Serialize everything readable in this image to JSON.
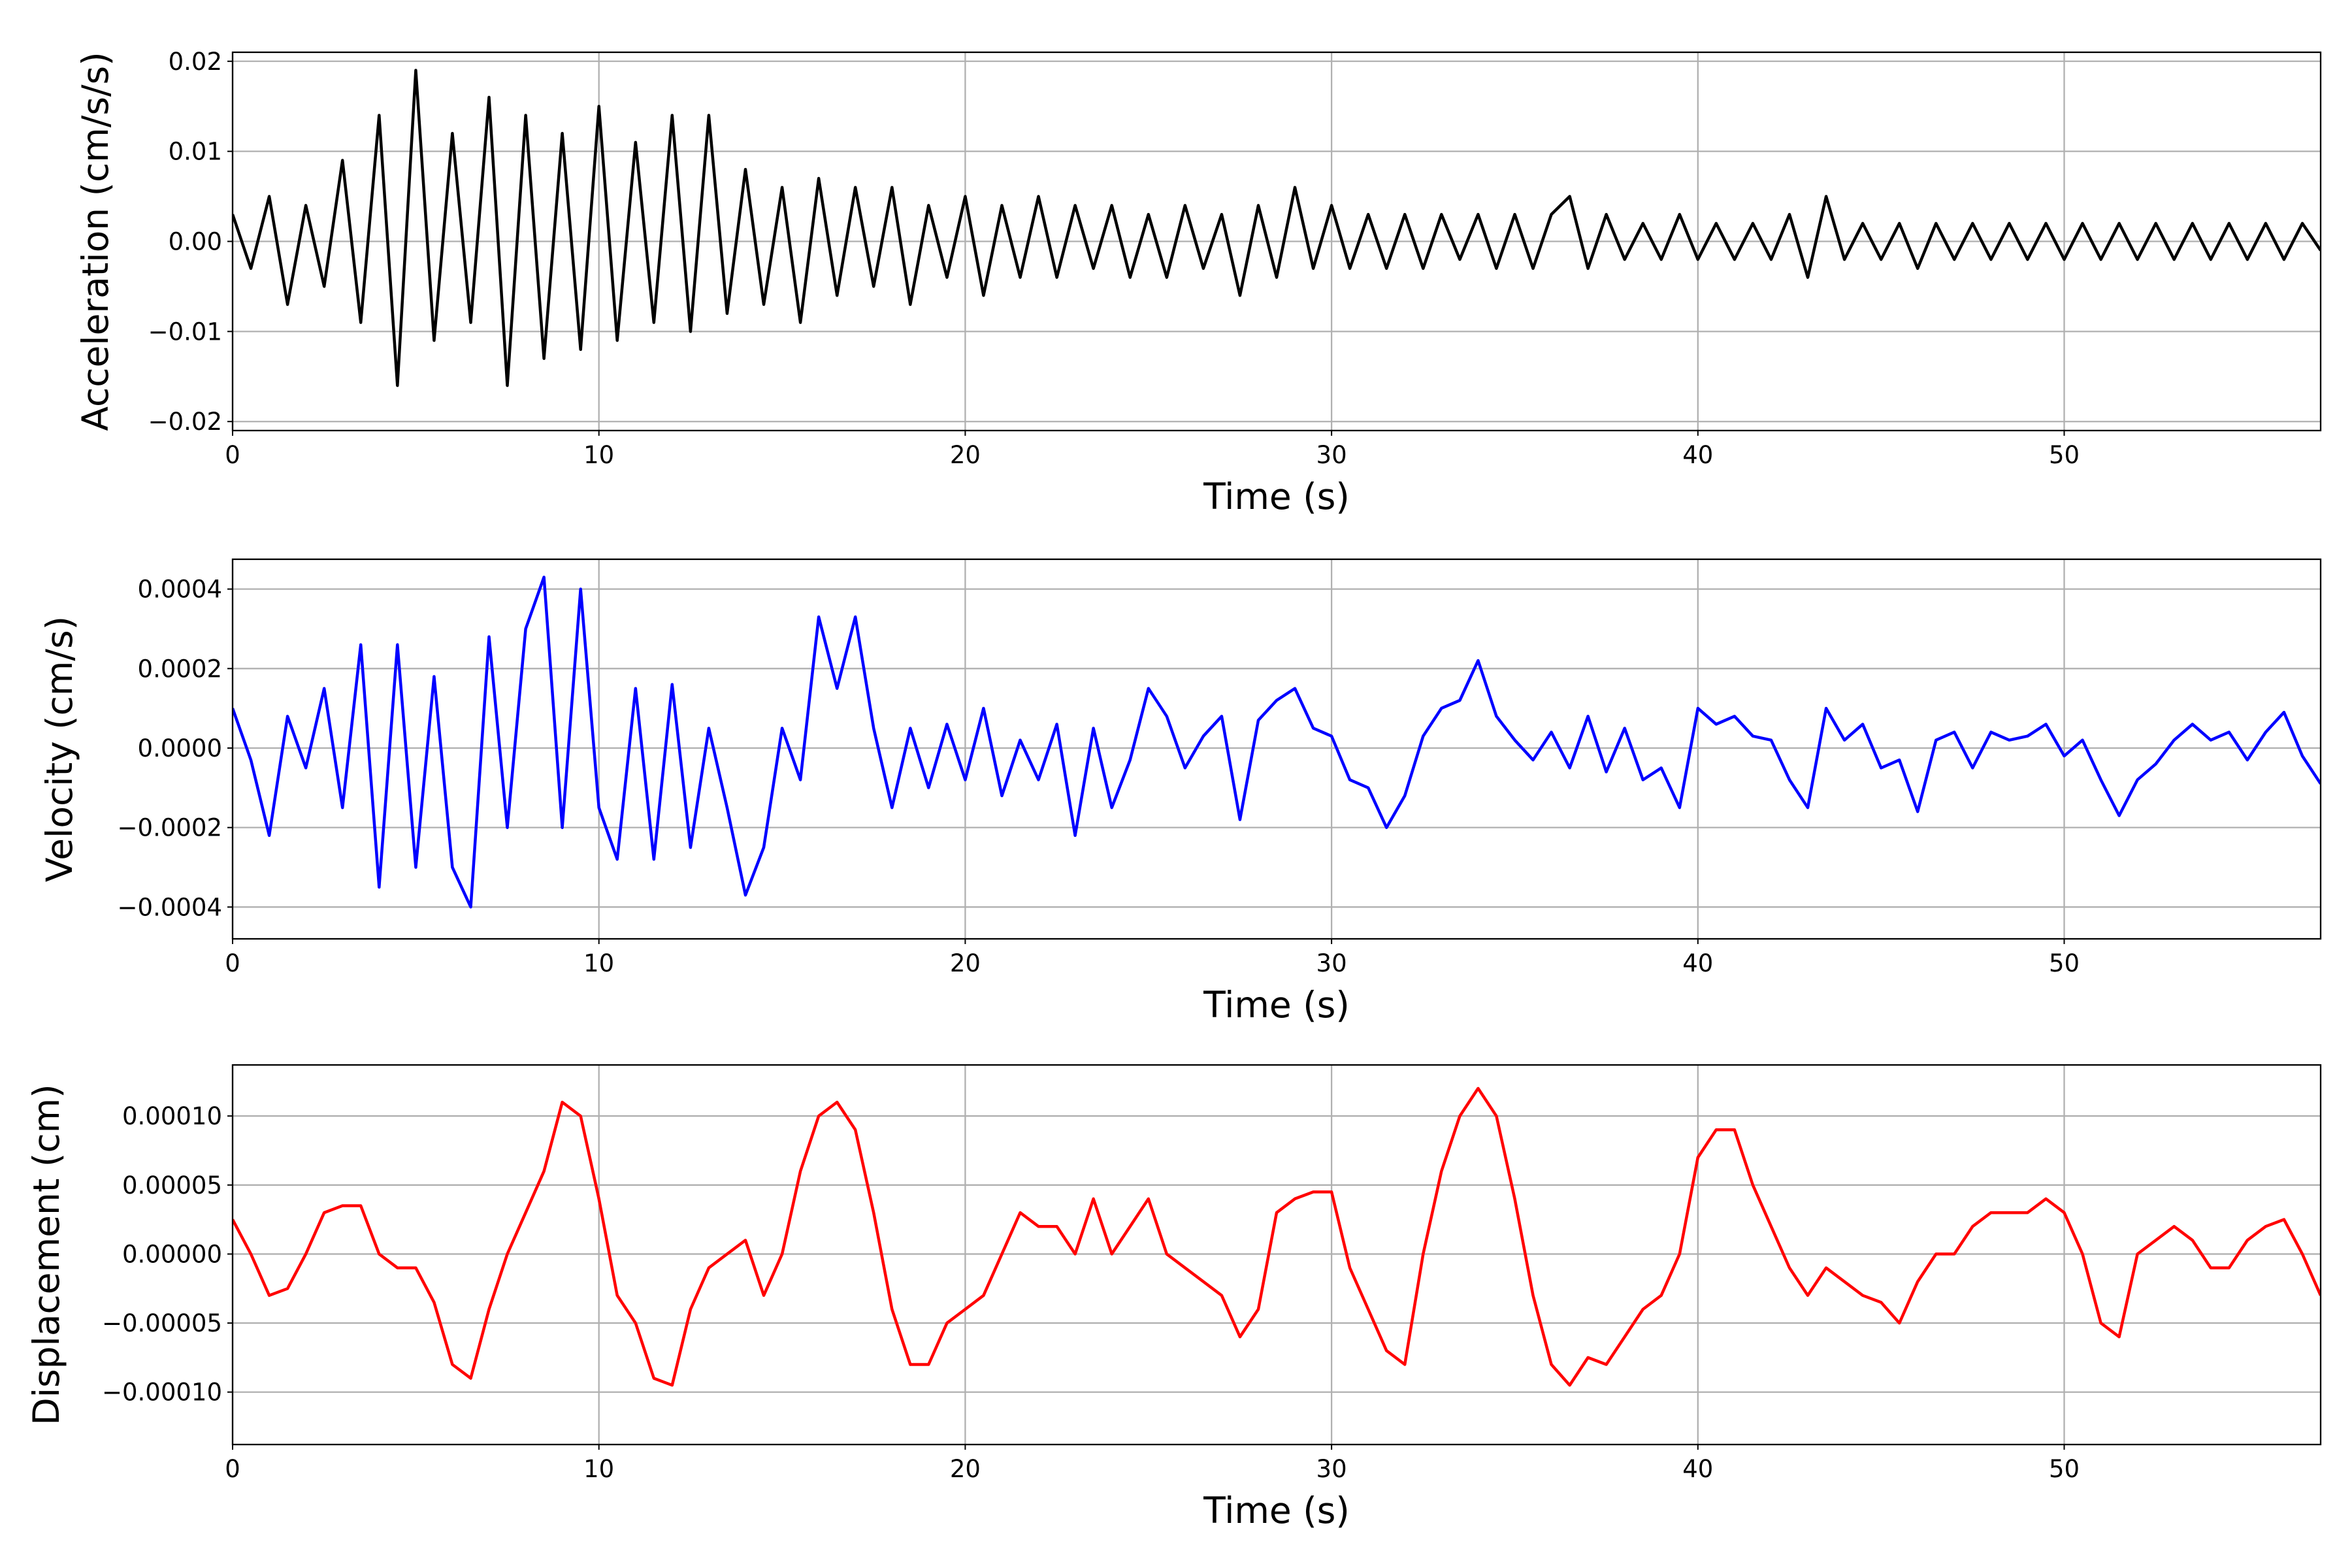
{
  "chart_data": [
    {
      "type": "line",
      "xlabel": "Time (s)",
      "ylabel": "Acceleration (cm/s/s)",
      "color": "#000000",
      "grid": true,
      "x": [
        0,
        0.5,
        1,
        1.5,
        2,
        2.5,
        3,
        3.5,
        4,
        4.5,
        5,
        5.5,
        6,
        6.5,
        7,
        7.5,
        8,
        8.5,
        9,
        9.5,
        10,
        10.5,
        11,
        11.5,
        12,
        12.5,
        13,
        13.5,
        14,
        14.5,
        15,
        15.5,
        16,
        16.5,
        17,
        17.5,
        18,
        18.5,
        19,
        19.5,
        20,
        20.5,
        21,
        21.5,
        22,
        22.5,
        23,
        23.5,
        24,
        24.5,
        25,
        25.5,
        26,
        26.5,
        27,
        27.5,
        28,
        28.5,
        29,
        29.5,
        30,
        30.5,
        31,
        31.5,
        32,
        32.5,
        33,
        33.5,
        34,
        34.5,
        35,
        35.5,
        36,
        36.5,
        37,
        37.5,
        38,
        38.5,
        39,
        39.5,
        40,
        40.5,
        41,
        41.5,
        42,
        42.5,
        43,
        43.5,
        44,
        44.5,
        45,
        45.5,
        46,
        46.5,
        47,
        47.5,
        48,
        48.5,
        49,
        49.5,
        50,
        50.5,
        51,
        51.5,
        52,
        52.5,
        53,
        53.5,
        54,
        54.5,
        55,
        55.5,
        56,
        56.5,
        57
      ],
      "values": [
        0.003,
        -0.003,
        0.005,
        -0.007,
        0.004,
        -0.005,
        0.009,
        -0.009,
        0.014,
        -0.016,
        0.019,
        -0.011,
        0.012,
        -0.009,
        0.016,
        -0.016,
        0.014,
        -0.013,
        0.012,
        -0.012,
        0.015,
        -0.011,
        0.011,
        -0.009,
        0.014,
        -0.01,
        0.014,
        -0.008,
        0.008,
        -0.007,
        0.006,
        -0.009,
        0.007,
        -0.006,
        0.006,
        -0.005,
        0.006,
        -0.007,
        0.004,
        -0.004,
        0.005,
        -0.006,
        0.004,
        -0.004,
        0.005,
        -0.004,
        0.004,
        -0.003,
        0.004,
        -0.004,
        0.003,
        -0.004,
        0.004,
        -0.003,
        0.003,
        -0.006,
        0.004,
        -0.004,
        0.006,
        -0.003,
        0.004,
        -0.003,
        0.003,
        -0.003,
        0.003,
        -0.003,
        0.003,
        -0.002,
        0.003,
        -0.003,
        0.003,
        -0.003,
        0.003,
        0.005,
        -0.003,
        0.003,
        -0.002,
        0.002,
        -0.002,
        0.003,
        -0.002,
        0.002,
        -0.002,
        0.002,
        -0.002,
        0.003,
        -0.004,
        0.005,
        -0.002,
        0.002,
        -0.002,
        0.002,
        -0.003,
        0.002,
        -0.002,
        0.002,
        -0.002,
        0.002,
        -0.002,
        0.002,
        -0.002,
        0.002,
        -0.002,
        0.002,
        -0.002,
        0.002,
        -0.002,
        0.002,
        -0.002,
        0.002,
        -0.002,
        0.002,
        -0.002,
        0.002,
        -0.001
      ],
      "xlim": [
        0,
        57
      ],
      "xticks": [
        0,
        10,
        20,
        30,
        40,
        50
      ],
      "ylim": [
        -0.021,
        0.021
      ],
      "yticks": [
        {
          "value": -0.02,
          "label": "−0.02"
        },
        {
          "value": -0.01,
          "label": "−0.01"
        },
        {
          "value": 0,
          "label": "0.00"
        },
        {
          "value": 0.01,
          "label": "0.01"
        },
        {
          "value": 0.02,
          "label": "0.02"
        }
      ]
    },
    {
      "type": "line",
      "xlabel": "Time (s)",
      "ylabel": "Velocity (cm/s)",
      "color": "#0000ff",
      "grid": true,
      "x": [
        0,
        0.5,
        1,
        1.5,
        2,
        2.5,
        3,
        3.5,
        4,
        4.5,
        5,
        5.5,
        6,
        6.5,
        7,
        7.5,
        8,
        8.5,
        9,
        9.5,
        10,
        10.5,
        11,
        11.5,
        12,
        12.5,
        13,
        13.5,
        14,
        14.5,
        15,
        15.5,
        16,
        16.5,
        17,
        17.5,
        18,
        18.5,
        19,
        19.5,
        20,
        20.5,
        21,
        21.5,
        22,
        22.5,
        23,
        23.5,
        24,
        24.5,
        25,
        25.5,
        26,
        26.5,
        27,
        27.5,
        28,
        28.5,
        29,
        29.5,
        30,
        30.5,
        31,
        31.5,
        32,
        32.5,
        33,
        33.5,
        34,
        34.5,
        35,
        35.5,
        36,
        36.5,
        37,
        37.5,
        38,
        38.5,
        39,
        39.5,
        40,
        40.5,
        41,
        41.5,
        42,
        42.5,
        43,
        43.5,
        44,
        44.5,
        45,
        45.5,
        46,
        46.5,
        47,
        47.5,
        48,
        48.5,
        49,
        49.5,
        50,
        50.5,
        51,
        51.5,
        52,
        52.5,
        53,
        53.5,
        54,
        54.5,
        55,
        55.5,
        56,
        56.5,
        57
      ],
      "values": [
        0.0001,
        -3e-05,
        -0.00022,
        8e-05,
        -5e-05,
        0.00015,
        -0.00015,
        0.00026,
        -0.00035,
        0.00026,
        -0.0003,
        0.00018,
        -0.0003,
        -0.0004,
        0.00028,
        -0.0002,
        0.0003,
        0.00043,
        -0.0002,
        0.0004,
        -0.00015,
        -0.00028,
        0.00015,
        -0.00028,
        0.00016,
        -0.00025,
        5e-05,
        -0.00015,
        -0.00037,
        -0.00025,
        5e-05,
        -8e-05,
        0.00033,
        0.00015,
        0.00033,
        5e-05,
        -0.00015,
        5e-05,
        -0.0001,
        6e-05,
        -8e-05,
        0.0001,
        -0.00012,
        2e-05,
        -8e-05,
        6e-05,
        -0.00022,
        5e-05,
        -0.00015,
        -3e-05,
        0.00015,
        8e-05,
        -5e-05,
        3e-05,
        8e-05,
        -0.00018,
        7e-05,
        0.00012,
        0.00015,
        5e-05,
        3e-05,
        -8e-05,
        -0.0001,
        -0.0002,
        -0.00012,
        3e-05,
        0.0001,
        0.00012,
        0.00022,
        8e-05,
        2e-05,
        -3e-05,
        4e-05,
        -5e-05,
        8e-05,
        -6e-05,
        5e-05,
        -8e-05,
        -5e-05,
        -0.00015,
        0.0001,
        6e-05,
        8e-05,
        3e-05,
        2e-05,
        -8e-05,
        -0.00015,
        0.0001,
        2e-05,
        6e-05,
        -5e-05,
        -3e-05,
        -0.00016,
        2e-05,
        4e-05,
        -5e-05,
        4e-05,
        2e-05,
        3e-05,
        6e-05,
        -2e-05,
        2e-05,
        -8e-05,
        -0.00017,
        -8e-05,
        -4e-05,
        2e-05,
        6e-05,
        2e-05,
        4e-05,
        -3e-05,
        4e-05,
        9e-05,
        -2e-05,
        -9e-05
      ],
      "xlim": [
        0,
        57
      ],
      "xticks": [
        0,
        10,
        20,
        30,
        40,
        50
      ],
      "ylim": [
        -0.00048,
        0.000475
      ],
      "yticks": [
        {
          "value": -0.0004,
          "label": "−0.0004"
        },
        {
          "value": -0.0002,
          "label": "−0.0002"
        },
        {
          "value": 0,
          "label": "0.0000"
        },
        {
          "value": 0.0002,
          "label": "0.0002"
        },
        {
          "value": 0.0004,
          "label": "0.0004"
        }
      ]
    },
    {
      "type": "line",
      "xlabel": "Time (s)",
      "ylabel": "Displacement (cm)",
      "color": "#ff0000",
      "grid": true,
      "x": [
        0,
        0.5,
        1,
        1.5,
        2,
        2.5,
        3,
        3.5,
        4,
        4.5,
        5,
        5.5,
        6,
        6.5,
        7,
        7.5,
        8,
        8.5,
        9,
        9.5,
        10,
        10.5,
        11,
        11.5,
        12,
        12.5,
        13,
        13.5,
        14,
        14.5,
        15,
        15.5,
        16,
        16.5,
        17,
        17.5,
        18,
        18.5,
        19,
        19.5,
        20,
        20.5,
        21,
        21.5,
        22,
        22.5,
        23,
        23.5,
        24,
        24.5,
        25,
        25.5,
        26,
        26.5,
        27,
        27.5,
        28,
        28.5,
        29,
        29.5,
        30,
        30.5,
        31,
        31.5,
        32,
        32.5,
        33,
        33.5,
        34,
        34.5,
        35,
        35.5,
        36,
        36.5,
        37,
        37.5,
        38,
        38.5,
        39,
        39.5,
        40,
        40.5,
        41,
        41.5,
        42,
        42.5,
        43,
        43.5,
        44,
        44.5,
        45,
        45.5,
        46,
        46.5,
        47,
        47.5,
        48,
        48.5,
        49,
        49.5,
        50,
        50.5,
        51,
        51.5,
        52,
        52.5,
        53,
        53.5,
        54,
        54.5,
        55,
        55.5,
        56,
        56.5,
        57
      ],
      "values": [
        2.5e-05,
        0,
        -3e-05,
        -2.5e-05,
        0,
        3e-05,
        3.5e-05,
        3.5e-05,
        0,
        -1e-05,
        -1e-05,
        -3.5e-05,
        -8e-05,
        -9e-05,
        -4e-05,
        0,
        3e-05,
        6e-05,
        0.00011,
        0.0001,
        4e-05,
        -3e-05,
        -5e-05,
        -9e-05,
        -9.5e-05,
        -4e-05,
        -1e-05,
        0,
        1e-05,
        -3e-05,
        0,
        6e-05,
        0.0001,
        0.00011,
        9e-05,
        3e-05,
        -4e-05,
        -8e-05,
        -8e-05,
        -5e-05,
        -4e-05,
        -3e-05,
        0,
        3e-05,
        2e-05,
        2e-05,
        0,
        4e-05,
        0,
        2e-05,
        4e-05,
        0,
        -1e-05,
        -2e-05,
        -3e-05,
        -6e-05,
        -4e-05,
        3e-05,
        4e-05,
        4.5e-05,
        4.5e-05,
        -1e-05,
        -4e-05,
        -7e-05,
        -8e-05,
        0,
        6e-05,
        0.0001,
        0.00012,
        0.0001,
        4e-05,
        -3e-05,
        -8e-05,
        -9.5e-05,
        -7.5e-05,
        -8e-05,
        -6e-05,
        -4e-05,
        -3e-05,
        0,
        7e-05,
        9e-05,
        9e-05,
        5e-05,
        2e-05,
        -1e-05,
        -3e-05,
        -1e-05,
        -2e-05,
        -3e-05,
        -3.5e-05,
        -5e-05,
        -2e-05,
        0,
        0,
        2e-05,
        3e-05,
        3e-05,
        3e-05,
        4e-05,
        3e-05,
        0,
        -5e-05,
        -6e-05,
        0,
        1e-05,
        2e-05,
        1e-05,
        -1e-05,
        -1e-05,
        1e-05,
        2e-05,
        2.5e-05,
        0,
        -3e-05
      ],
      "xlim": [
        0,
        57
      ],
      "xticks": [
        0,
        10,
        20,
        30,
        40,
        50
      ],
      "ylim": [
        -0.000138,
        0.000137
      ],
      "yticks": [
        {
          "value": -0.0001,
          "label": "−0.00010"
        },
        {
          "value": -5e-05,
          "label": "−0.00005"
        },
        {
          "value": 0,
          "label": "0.00000"
        },
        {
          "value": 5e-05,
          "label": "0.00005"
        },
        {
          "value": 0.0001,
          "label": "0.00010"
        }
      ]
    }
  ]
}
